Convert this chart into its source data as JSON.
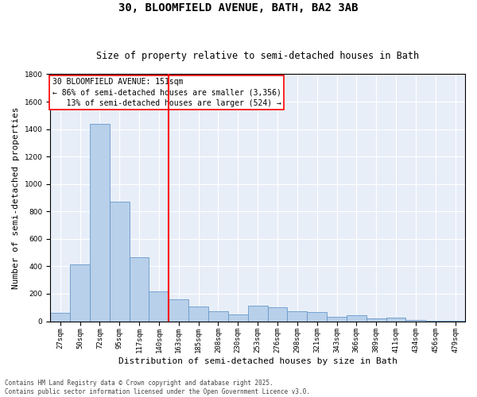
{
  "title_line1": "30, BLOOMFIELD AVENUE, BATH, BA2 3AB",
  "title_line2": "Size of property relative to semi-detached houses in Bath",
  "xlabel": "Distribution of semi-detached houses by size in Bath",
  "ylabel": "Number of semi-detached properties",
  "background_color": "#e8eef8",
  "bar_color": "#b8d0ea",
  "bar_edge_color": "#6699cc",
  "categories": [
    "27sqm",
    "50sqm",
    "72sqm",
    "95sqm",
    "117sqm",
    "140sqm",
    "163sqm",
    "185sqm",
    "208sqm",
    "230sqm",
    "253sqm",
    "276sqm",
    "298sqm",
    "321sqm",
    "343sqm",
    "366sqm",
    "389sqm",
    "411sqm",
    "434sqm",
    "456sqm",
    "479sqm"
  ],
  "values": [
    60,
    415,
    1440,
    870,
    465,
    215,
    160,
    105,
    75,
    50,
    115,
    100,
    75,
    65,
    30,
    45,
    20,
    25,
    10,
    5,
    5
  ],
  "ylim": [
    0,
    1800
  ],
  "yticks": [
    0,
    200,
    400,
    600,
    800,
    1000,
    1200,
    1400,
    1600,
    1800
  ],
  "property_label": "30 BLOOMFIELD AVENUE: 151sqm",
  "pct_smaller": 86,
  "count_smaller": 3356,
  "pct_larger": 13,
  "count_larger": 524,
  "vline_x_index": 5.5,
  "footer_line1": "Contains HM Land Registry data © Crown copyright and database right 2025.",
  "footer_line2": "Contains public sector information licensed under the Open Government Licence v3.0.",
  "title_fontsize": 10,
  "subtitle_fontsize": 8.5,
  "axis_label_fontsize": 8,
  "tick_fontsize": 6.5,
  "annotation_fontsize": 7,
  "footer_fontsize": 5.5
}
